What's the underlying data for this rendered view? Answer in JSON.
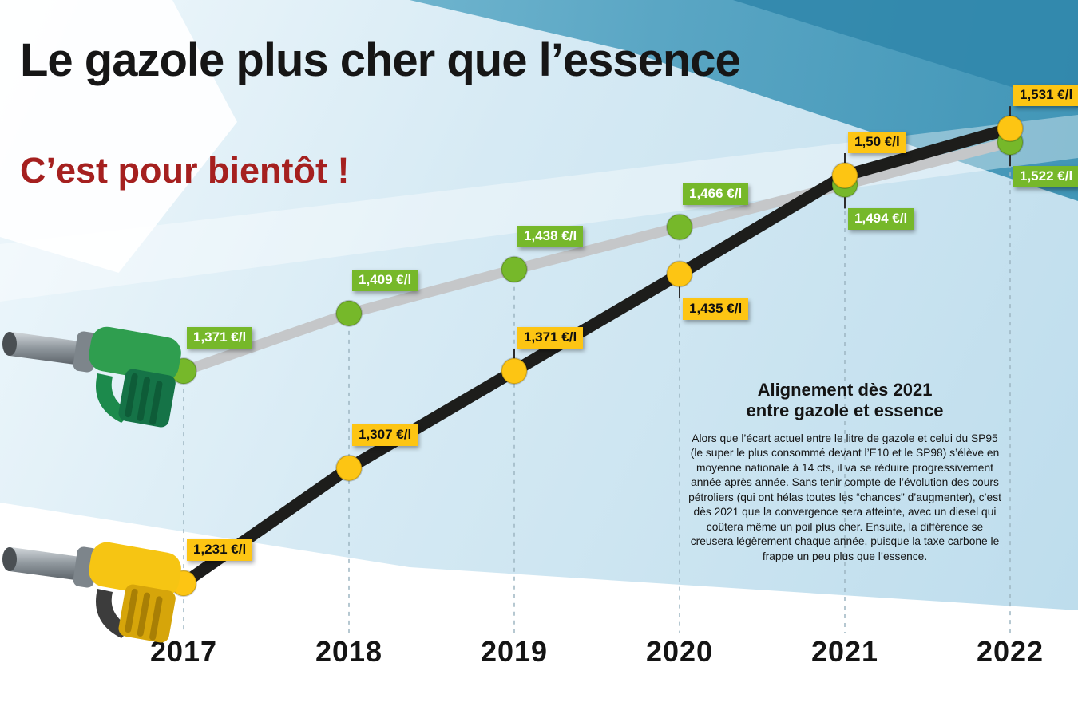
{
  "header": {
    "title": "Le gazole plus cher que l’essence",
    "subtitle": "C’est pour bientôt !"
  },
  "infobox": {
    "heading_line1": "Alignement dès 2021",
    "heading_line2": "entre gazole et essence",
    "body": "Alors que l’écart actuel entre le litre de gazole et celui du SP95 (le super le plus consommé devant l’E10 et le SP98) s’élève en moyenne nationale à 14 cts, il va se réduire progressivement année après année. Sans tenir compte de l’évolution des cours pétroliers (qui ont hélas toutes les “chances” d’augmenter), c’est dès 2021 que la convergence sera atteinte, avec un diesel qui coûtera même un poil plus cher. Ensuite, la différence se creusera légèrement chaque année, puisque la taxe carbone le frappe un peu plus que l’essence."
  },
  "chart_data": {
    "type": "line",
    "categories": [
      "2017",
      "2018",
      "2019",
      "2020",
      "2021",
      "2022"
    ],
    "unit": "€/l",
    "ylim": [
      1.2,
      1.56
    ],
    "legend_position": "none",
    "grid": "dashed vertical guide per year",
    "series": [
      {
        "name": "essence",
        "description": "prix du litre d’essence SP95",
        "dot_color": "#76b82a",
        "line_color": "#c5c7c9",
        "values": [
          1.371,
          1.409,
          1.438,
          1.466,
          1.494,
          1.522
        ],
        "labels": [
          "1,371 €/l",
          "1,409 €/l",
          "1,438 €/l",
          "1,466 €/l",
          "1,494 €/l",
          "1,522 €/l"
        ]
      },
      {
        "name": "gazole",
        "description": "prix du litre de gazole",
        "dot_color": "#fdc513",
        "line_color": "#1d1d1b",
        "values": [
          1.231,
          1.307,
          1.371,
          1.435,
          1.5,
          1.531
        ],
        "labels": [
          "1,231 €/l",
          "1,307 €/l",
          "1,371 €/l",
          "1,435 €/l",
          "1,50 €/l",
          "1,531 €/l"
        ]
      }
    ]
  },
  "colors": {
    "essence_green": "#76b82a",
    "gazole_yellow": "#fdc513",
    "subtitle_red": "#a5201f",
    "year_text": "#141414"
  }
}
